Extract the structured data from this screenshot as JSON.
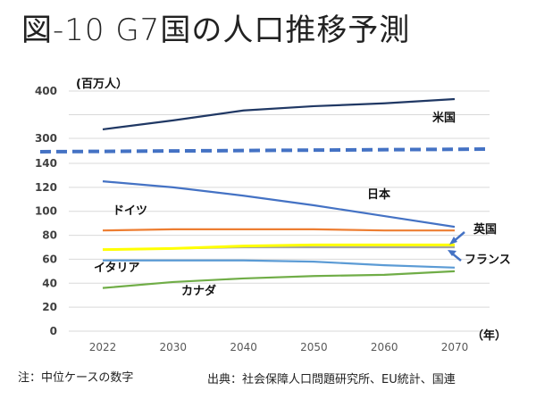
{
  "title": "図-10 G7国の人口推移予測",
  "chart_data": {
    "type": "line",
    "title": "図-10 G7国の人口推移予測",
    "ylabel": "(百万人）",
    "xlabel": "（年）",
    "x": [
      "2022",
      "2030",
      "2040",
      "2050",
      "2060",
      "2070"
    ],
    "y_axis_broken": true,
    "y_ticks_lower": [
      "0",
      "20",
      "40",
      "60",
      "80",
      "100",
      "120",
      "140"
    ],
    "y_ticks_upper": [
      "300",
      "400"
    ],
    "ylim_lower": [
      0,
      140
    ],
    "ylim_upper": [
      300,
      400
    ],
    "grid": true,
    "series": [
      {
        "name": "米国",
        "color": "#203864",
        "values": [
          319,
          338,
          359,
          368,
          374,
          383
        ]
      },
      {
        "name": "日本",
        "color": "#4472C4",
        "values": [
          125,
          120,
          113,
          105,
          96,
          87
        ]
      },
      {
        "name": "ドイツ",
        "color": "#ED7D31",
        "values": [
          84,
          85,
          85,
          85,
          84,
          84
        ]
      },
      {
        "name": "英国",
        "color": "#FFFF00",
        "values": [
          68,
          69,
          71,
          72,
          72,
          72
        ]
      },
      {
        "name": "フランス",
        "color": "#A5A5A5",
        "values": [
          68,
          69,
          70,
          70,
          70,
          70
        ]
      },
      {
        "name": "イタリア",
        "color": "#5B9BD5",
        "values": [
          59,
          59,
          59,
          58,
          55,
          53
        ]
      },
      {
        "name": "カナダ",
        "color": "#70AD47",
        "values": [
          36,
          41,
          44,
          46,
          47,
          50
        ]
      }
    ],
    "break_line_color": "#4472C4",
    "annotations": [
      "米国",
      "日本",
      "ドイツ",
      "英国",
      "フランス",
      "イタリア",
      "カナダ"
    ]
  },
  "labels": {
    "usa": "米国",
    "japan": "日本",
    "germany": "ドイツ",
    "uk": "英国",
    "france": "フランス",
    "italy": "イタリア",
    "canada": "カナダ",
    "unit": "(百万人）",
    "year_unit": "（年）"
  },
  "footer": {
    "note": "注：中位ケースの数字",
    "source": "出典：社会保障人口問題研究所、EU統計、国連"
  }
}
